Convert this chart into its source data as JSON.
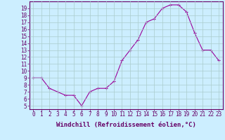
{
  "x": [
    0,
    1,
    2,
    3,
    4,
    5,
    6,
    7,
    8,
    9,
    10,
    11,
    12,
    13,
    14,
    15,
    16,
    17,
    18,
    19,
    20,
    21,
    22,
    23
  ],
  "y": [
    9.0,
    9.0,
    7.5,
    7.0,
    6.5,
    6.5,
    5.0,
    7.0,
    7.5,
    7.5,
    8.5,
    11.5,
    13.0,
    14.5,
    17.0,
    17.5,
    19.0,
    19.5,
    19.5,
    18.5,
    15.5,
    13.0,
    13.0,
    11.5
  ],
  "line_color": "#990099",
  "marker": "+",
  "bg_color": "#cceeff",
  "grid_color": "#aacccc",
  "xlabel": "Windchill (Refroidissement éolien,°C)",
  "xlim": [
    -0.5,
    23.5
  ],
  "ylim": [
    4.5,
    20
  ],
  "yticks": [
    5,
    6,
    7,
    8,
    9,
    10,
    11,
    12,
    13,
    14,
    15,
    16,
    17,
    18,
    19
  ],
  "xticks": [
    0,
    1,
    2,
    3,
    4,
    5,
    6,
    7,
    8,
    9,
    10,
    11,
    12,
    13,
    14,
    15,
    16,
    17,
    18,
    19,
    20,
    21,
    22,
    23
  ],
  "tick_label_fontsize": 5.5,
  "xlabel_fontsize": 6.5,
  "axis_label_color": "#660066",
  "tick_color": "#660066",
  "spine_color": "#660066",
  "line_width": 0.8,
  "marker_size": 3
}
